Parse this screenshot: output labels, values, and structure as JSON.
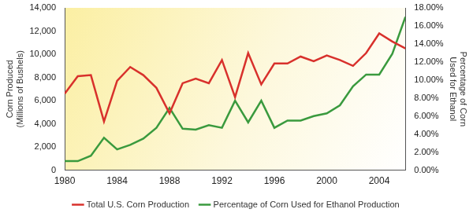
{
  "chart_data": {
    "type": "line",
    "x_label": null,
    "y_label": [
      "Corn Produced",
      "(Millions of Bushels)"
    ],
    "y2_label": [
      "Percentage of Corn",
      "Used for Ethanol"
    ],
    "x": [
      1980,
      1981,
      1982,
      1983,
      1984,
      1985,
      1986,
      1987,
      1988,
      1989,
      1990,
      1991,
      1992,
      1993,
      1994,
      1995,
      1996,
      1997,
      1998,
      1999,
      2000,
      2001,
      2002,
      2003,
      2004,
      2005,
      2006
    ],
    "series": [
      {
        "name": "Total U.S. Corn Production",
        "color": "#d8312c",
        "values": [
          6600,
          8100,
          8200,
          4200,
          7700,
          8900,
          8200,
          7100,
          4900,
          7500,
          7900,
          7500,
          9500,
          6300,
          10100,
          7400,
          9200,
          9200,
          9800,
          9400,
          9900,
          9500,
          9000,
          10100,
          11800,
          11100,
          10500
        ]
      },
      {
        "name": "Percentage of Corn Used for Ethanol Production",
        "color": "#3a9a3e",
        "axis": "y2",
        "values": [
          1.0,
          1.0,
          1.6,
          3.6,
          2.3,
          2.8,
          3.5,
          4.7,
          6.9,
          4.6,
          4.5,
          5.0,
          4.7,
          7.7,
          5.3,
          7.7,
          4.7,
          5.5,
          5.5,
          6.0,
          6.3,
          7.2,
          9.3,
          10.6,
          10.6,
          12.9,
          17.0
        ]
      }
    ],
    "xlim": [
      1980,
      2006
    ],
    "xticks": [
      1980,
      1984,
      1988,
      1992,
      1996,
      2000,
      2004
    ],
    "ylim": [
      0,
      14000
    ],
    "yticks": [
      0,
      {
        "value": 2000,
        "label": "2,000"
      },
      {
        "value": 4000,
        "label": "4,000"
      },
      {
        "value": 6000,
        "label": "6,000"
      },
      {
        "value": 8000,
        "label": "8,000"
      },
      {
        "value": 10000,
        "label": "10,000"
      },
      {
        "value": 12000,
        "label": "12,000"
      },
      {
        "value": 14000,
        "label": "14,000"
      }
    ],
    "y2lim": [
      0,
      18
    ],
    "y2ticks": [
      {
        "value": 0,
        "label": "0.00%"
      },
      {
        "value": 2,
        "label": "2.00%"
      },
      {
        "value": 4,
        "label": "4.00%"
      },
      {
        "value": 6,
        "label": "6.00%"
      },
      {
        "value": 8,
        "label": "8.00%"
      },
      {
        "value": 10,
        "label": "10.00%"
      },
      {
        "value": 12,
        "label": "12.00%"
      },
      {
        "value": 14,
        "label": "14.00%"
      },
      {
        "value": 16,
        "label": "16.00%"
      },
      {
        "value": 18,
        "label": "18.00%"
      }
    ],
    "grid": false,
    "legend": "bottom"
  }
}
